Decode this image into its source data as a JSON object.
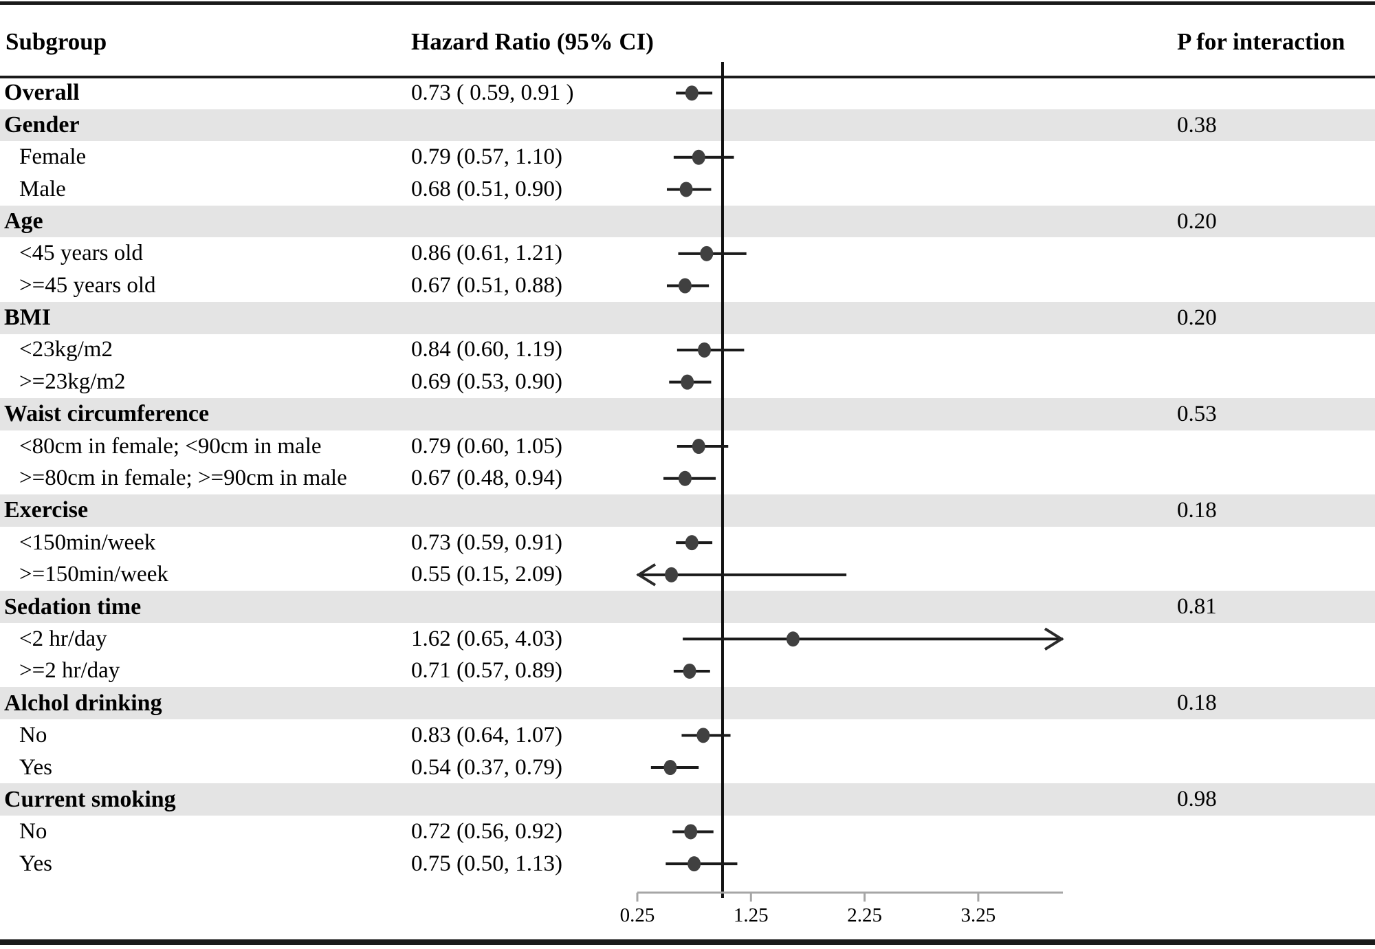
{
  "figure": {
    "columns": {
      "subgroup": "Subgroup",
      "hazard_ratio": "Hazard Ratio (95% CI)",
      "p_interaction": "P for interaction"
    }
  },
  "colors": {
    "band": "#e4e4e4",
    "ci_line": "#1a1a1a",
    "dot": "#404040",
    "arrow": "#2a2a2a",
    "axis": "#a6a6a6",
    "reference_line": "#111111",
    "text": "#000000"
  },
  "chart_data": {
    "type": "scatter",
    "subtype": "forest-plot",
    "title": "",
    "xlabel": "",
    "ylabel": "",
    "legend": null,
    "grid": false,
    "axis": {
      "scale": "linear",
      "min": 0.25,
      "max": 4.0,
      "ticks": [
        0.25,
        1.25,
        2.25,
        3.25
      ],
      "tick_labels": [
        "0.25",
        "1.25",
        "2.25",
        "3.25"
      ],
      "reference_line": 1.0
    },
    "rows": [
      {
        "label": "Overall",
        "type": "overall",
        "shaded": false,
        "hr_text": "0.73 ( 0.59, 0.91 )",
        "est": 0.73,
        "lo": 0.59,
        "hi": 0.91
      },
      {
        "label": "Gender",
        "type": "group",
        "shaded": true,
        "p": "0.38"
      },
      {
        "label": "Female",
        "type": "item",
        "shaded": false,
        "hr_text": "0.79 (0.57, 1.10)",
        "est": 0.79,
        "lo": 0.57,
        "hi": 1.1
      },
      {
        "label": "Male",
        "type": "item",
        "shaded": false,
        "hr_text": "0.68 (0.51, 0.90)",
        "est": 0.68,
        "lo": 0.51,
        "hi": 0.9
      },
      {
        "label": "Age",
        "type": "group",
        "shaded": true,
        "p": "0.20"
      },
      {
        "label": "<45 years old",
        "type": "item",
        "shaded": false,
        "hr_text": "0.86 (0.61, 1.21)",
        "est": 0.86,
        "lo": 0.61,
        "hi": 1.21
      },
      {
        "label": ">=45 years old",
        "type": "item",
        "shaded": false,
        "hr_text": "0.67 (0.51, 0.88)",
        "est": 0.67,
        "lo": 0.51,
        "hi": 0.88
      },
      {
        "label": "BMI",
        "type": "group",
        "shaded": true,
        "p": "0.20"
      },
      {
        "label": "<23kg/m2",
        "type": "item",
        "shaded": false,
        "hr_text": "0.84 (0.60, 1.19)",
        "est": 0.84,
        "lo": 0.6,
        "hi": 1.19
      },
      {
        "label": ">=23kg/m2",
        "type": "item",
        "shaded": false,
        "hr_text": "0.69 (0.53, 0.90)",
        "est": 0.69,
        "lo": 0.53,
        "hi": 0.9
      },
      {
        "label": "Waist circumference",
        "type": "group",
        "shaded": true,
        "p": "0.53"
      },
      {
        "label": "<80cm in female; <90cm in male",
        "type": "item",
        "shaded": false,
        "hr_text": "0.79 (0.60, 1.05)",
        "est": 0.79,
        "lo": 0.6,
        "hi": 1.05
      },
      {
        "label": ">=80cm in female; >=90cm in male",
        "type": "item",
        "shaded": false,
        "hr_text": "0.67 (0.48, 0.94)",
        "est": 0.67,
        "lo": 0.48,
        "hi": 0.94
      },
      {
        "label": "Exercise",
        "type": "group",
        "shaded": true,
        "p": "0.18"
      },
      {
        "label": "<150min/week",
        "type": "item",
        "shaded": false,
        "hr_text": "0.73 (0.59, 0.91)",
        "est": 0.73,
        "lo": 0.59,
        "hi": 0.91
      },
      {
        "label": ">=150min/week",
        "type": "item",
        "shaded": false,
        "hr_text": "0.55 (0.15, 2.09)",
        "est": 0.55,
        "lo": 0.15,
        "hi": 2.09
      },
      {
        "label": "Sedation time",
        "type": "group",
        "shaded": true,
        "p": "0.81"
      },
      {
        "label": "<2 hr/day",
        "type": "item",
        "shaded": false,
        "hr_text": "1.62 (0.65, 4.03)",
        "est": 1.62,
        "lo": 0.65,
        "hi": 4.03
      },
      {
        "label": ">=2 hr/day",
        "type": "item",
        "shaded": false,
        "hr_text": "0.71 (0.57, 0.89)",
        "est": 0.71,
        "lo": 0.57,
        "hi": 0.89
      },
      {
        "label": "Alchol drinking",
        "type": "group",
        "shaded": true,
        "p": "0.18"
      },
      {
        "label": "No",
        "type": "item",
        "shaded": false,
        "hr_text": "0.83 (0.64, 1.07)",
        "est": 0.83,
        "lo": 0.64,
        "hi": 1.07
      },
      {
        "label": "Yes",
        "type": "item",
        "shaded": false,
        "hr_text": "0.54 (0.37, 0.79)",
        "est": 0.54,
        "lo": 0.37,
        "hi": 0.79
      },
      {
        "label": "Current smoking",
        "type": "group",
        "shaded": true,
        "p": "0.98"
      },
      {
        "label": "No",
        "type": "item",
        "shaded": false,
        "hr_text": "0.72 (0.56, 0.92)",
        "est": 0.72,
        "lo": 0.56,
        "hi": 0.92
      },
      {
        "label": "Yes",
        "type": "item",
        "shaded": false,
        "hr_text": "0.75 (0.50, 1.13)",
        "est": 0.75,
        "lo": 0.5,
        "hi": 1.13
      }
    ]
  }
}
